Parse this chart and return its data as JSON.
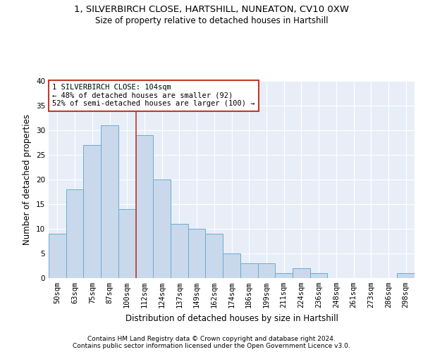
{
  "title1": "1, SILVERBIRCH CLOSE, HARTSHILL, NUNEATON, CV10 0XW",
  "title2": "Size of property relative to detached houses in Hartshill",
  "xlabel": "Distribution of detached houses by size in Hartshill",
  "ylabel": "Number of detached properties",
  "categories": [
    "50sqm",
    "63sqm",
    "75sqm",
    "87sqm",
    "100sqm",
    "112sqm",
    "124sqm",
    "137sqm",
    "149sqm",
    "162sqm",
    "174sqm",
    "186sqm",
    "199sqm",
    "211sqm",
    "224sqm",
    "236sqm",
    "248sqm",
    "261sqm",
    "273sqm",
    "286sqm",
    "298sqm"
  ],
  "values": [
    9,
    18,
    27,
    31,
    14,
    29,
    20,
    11,
    10,
    9,
    5,
    3,
    3,
    1,
    2,
    1,
    0,
    0,
    0,
    0,
    1
  ],
  "bar_color": "#c9d9eb",
  "bar_edge_color": "#6aaad4",
  "vline_x_index": 4,
  "vline_color": "#c0392b",
  "annotation_line1": "1 SILVERBIRCH CLOSE: 104sqm",
  "annotation_line2": "← 48% of detached houses are smaller (92)",
  "annotation_line3": "52% of semi-detached houses are larger (100) →",
  "annotation_box_color": "#ffffff",
  "annotation_box_edge": "#c0392b",
  "footer1": "Contains HM Land Registry data © Crown copyright and database right 2024.",
  "footer2": "Contains public sector information licensed under the Open Government Licence v3.0.",
  "ylim": [
    0,
    40
  ],
  "yticks": [
    0,
    5,
    10,
    15,
    20,
    25,
    30,
    35,
    40
  ],
  "plot_bg": "#e8eef8",
  "grid_color": "#ffffff",
  "title1_fontsize": 9.5,
  "title2_fontsize": 8.5,
  "xlabel_fontsize": 8.5,
  "ylabel_fontsize": 8.5,
  "tick_fontsize": 7.5,
  "annotation_fontsize": 7.5,
  "footer_fontsize": 6.5
}
